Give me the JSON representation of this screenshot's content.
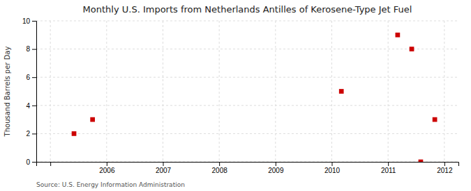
{
  "chart_data": {
    "type": "scatter",
    "title": "Monthly U.S. Imports from Netherlands Antilles of Kerosene-Type Jet Fuel",
    "y_label": "Thousand Barrels per Day",
    "source": "Source: U.S. Energy Information Administration",
    "x": [
      2005.42,
      2005.75,
      2010.17,
      2011.17,
      2011.42,
      2011.58,
      2011.83
    ],
    "values": [
      2,
      3,
      5,
      9,
      8,
      0,
      3
    ],
    "color": "#cc0000",
    "marker": "square",
    "xlim": [
      2004.75,
      2012.25
    ],
    "ylim": [
      0,
      10
    ],
    "xticks": [
      {
        "value": 2005,
        "label": null
      },
      2006,
      2007,
      2008,
      2009,
      2010,
      2011,
      2012
    ],
    "yticks": [
      0,
      2,
      4,
      6,
      8,
      10
    ],
    "grid": true
  }
}
